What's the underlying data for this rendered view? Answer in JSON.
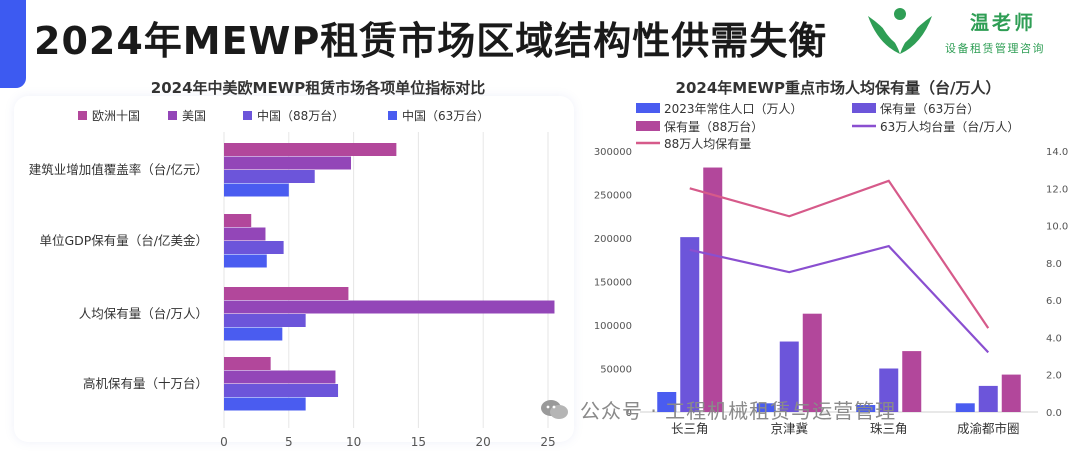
{
  "header": {
    "title": "2024年MEWP租赁市场区域结构性供需失衡",
    "accent_color": "#3d5af1"
  },
  "logo": {
    "name": "温老师",
    "subtitle": "设备租赁管理咨询",
    "color": "#2f9e55",
    "icon": "green-wings-logo"
  },
  "watermark": {
    "icon": "wechat-icon",
    "text": "公众号 · 工程机械租赁与运营管理"
  },
  "chart_data": [
    {
      "type": "bar",
      "orientation": "horizontal",
      "title": "2024年中美欧MEWP租赁市场各项单位指标对比",
      "categories": [
        "建筑业增加值覆盖率（台/亿元）",
        "单位GDP保有量（台/亿美金）",
        "人均保有量（台/万人）",
        "高机保有量（十万台）"
      ],
      "series": [
        {
          "name": "欧洲十国",
          "color": "#b2479b",
          "values": [
            13.3,
            2.1,
            9.6,
            3.6
          ]
        },
        {
          "name": "美国",
          "color": "#9346b8",
          "values": [
            9.8,
            3.2,
            25.5,
            8.6
          ]
        },
        {
          "name": "中国（88万台）",
          "color": "#6c55da",
          "values": [
            7.0,
            4.6,
            6.3,
            8.8
          ]
        },
        {
          "name": "中国（63万台）",
          "color": "#4a5cf0",
          "values": [
            5.0,
            3.3,
            4.5,
            6.3
          ]
        }
      ],
      "xlim": [
        0,
        25
      ],
      "xticks": [
        0,
        5,
        10,
        15,
        20,
        25
      ],
      "legend": "top"
    },
    {
      "type": "bar+line",
      "title": "2024年MEWP重点市场人均保有量（台/万人）",
      "categories": [
        "长三角",
        "京津冀",
        "珠三角",
        "成渝都市圈"
      ],
      "bars": [
        {
          "name": "2023年常住人口（万人）",
          "color": "#4a5cf0",
          "values": [
            23000,
            10000,
            8000,
            10000
          ]
        },
        {
          "name": "保有量（63万台）",
          "color": "#6c55da",
          "values": [
            201000,
            81000,
            50000,
            30000
          ]
        },
        {
          "name": "保有量（88万台）",
          "color": "#b2479b",
          "values": [
            281000,
            113000,
            70000,
            43000
          ]
        }
      ],
      "lines": [
        {
          "name": "63万人均台量（台/万人）",
          "color": "#8a4fd0",
          "values": [
            8.7,
            7.5,
            8.9,
            3.2
          ]
        },
        {
          "name": "88万人均保有量",
          "color": "#d65a8a",
          "values": [
            12.0,
            10.5,
            12.4,
            4.5
          ]
        }
      ],
      "ylim": [
        0,
        300000
      ],
      "yticks": [
        0,
        50000,
        100000,
        150000,
        200000,
        250000,
        300000
      ],
      "y2lim": [
        0,
        14
      ],
      "y2ticks": [
        "0.0",
        "2.0",
        "4.0",
        "6.0",
        "8.0",
        "10.0",
        "12.0",
        "14.0"
      ],
      "legend": "top"
    }
  ]
}
